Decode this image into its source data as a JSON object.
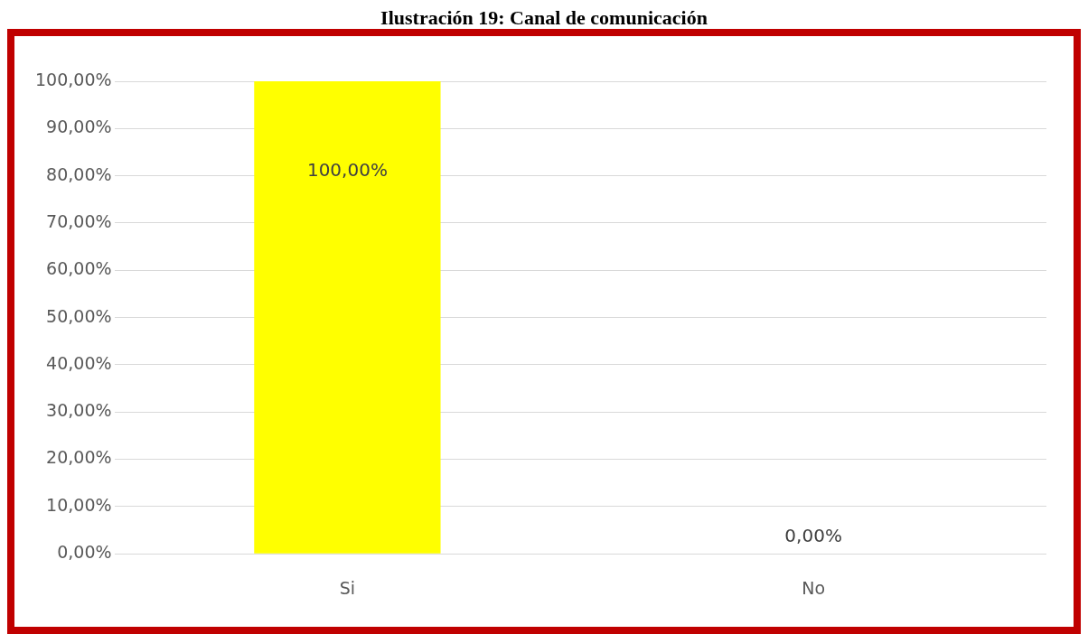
{
  "chart_data": {
    "type": "bar",
    "title": "Ilustración 19: Canal de comunicación",
    "categories": [
      "Si",
      "No"
    ],
    "values": [
      100,
      0
    ],
    "colors": [
      "#ffff00",
      "#990000"
    ],
    "value_labels": [
      "100,00%",
      "0,00%"
    ],
    "ylim": [
      0,
      100
    ],
    "yticks": [
      {
        "value": 0,
        "label": "0,00%"
      },
      {
        "value": 10,
        "label": "10,00%"
      },
      {
        "value": 20,
        "label": "20,00%"
      },
      {
        "value": 30,
        "label": "30,00%"
      },
      {
        "value": 40,
        "label": "40,00%"
      },
      {
        "value": 50,
        "label": "50,00%"
      },
      {
        "value": 60,
        "label": "60,00%"
      },
      {
        "value": 70,
        "label": "70,00%"
      },
      {
        "value": 80,
        "label": "80,00%"
      },
      {
        "value": 90,
        "label": "90,00%"
      },
      {
        "value": 100,
        "label": "100,00%"
      }
    ],
    "grid": "y",
    "legend": false
  }
}
